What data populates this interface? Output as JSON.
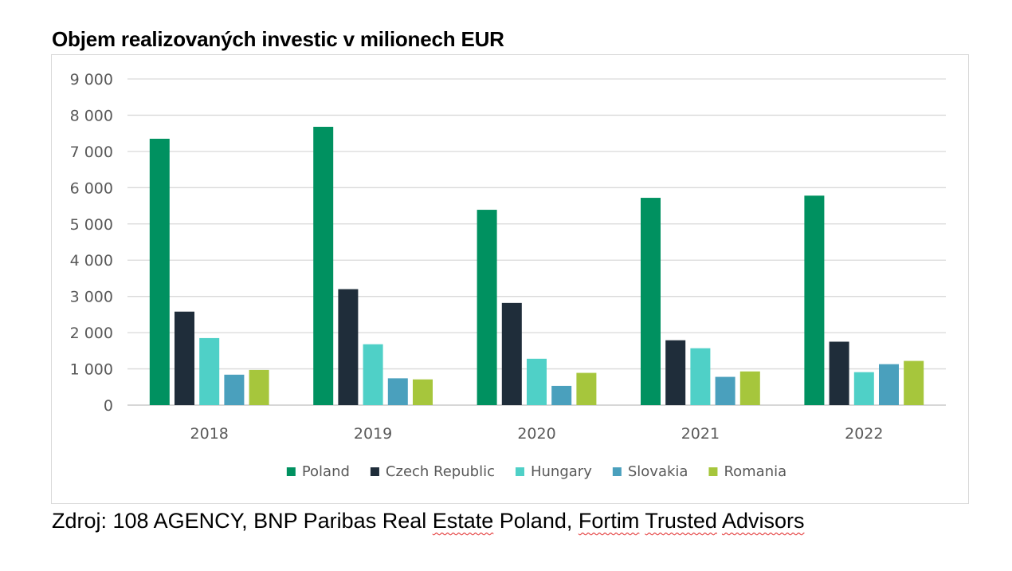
{
  "title": "Objem realizovaných investic v milionech EUR",
  "source": {
    "prefix": "Zdroj: 108 AGENCY, BNP Paribas Real ",
    "w1": "Estate",
    "mid1": " Poland, ",
    "w2": "Fortim",
    "mid2": " ",
    "w3": "Trusted",
    "mid3": " ",
    "w4": "Advisors"
  },
  "chart_data": {
    "type": "bar",
    "categories": [
      "2018",
      "2019",
      "2020",
      "2021",
      "2022"
    ],
    "y_ticks": [
      "0",
      "1 000",
      "2 000",
      "3 000",
      "4 000",
      "5 000",
      "6 000",
      "7 000",
      "8 000",
      "9 000"
    ],
    "ylim": [
      0,
      9000
    ],
    "grid": true,
    "legend_position": "bottom",
    "series": [
      {
        "name": "Poland",
        "color": "#009160",
        "values": [
          7350,
          7680,
          5390,
          5720,
          5780
        ]
      },
      {
        "name": "Czech Republic",
        "color": "#1f2d3a",
        "values": [
          2580,
          3200,
          2820,
          1790,
          1750
        ]
      },
      {
        "name": "Hungary",
        "color": "#4fd0c7",
        "values": [
          1850,
          1680,
          1280,
          1570,
          910
        ]
      },
      {
        "name": "Slovakia",
        "color": "#4aa0bd",
        "values": [
          840,
          740,
          530,
          780,
          1130
        ]
      },
      {
        "name": "Romania",
        "color": "#a6c63c",
        "values": [
          970,
          710,
          890,
          930,
          1220
        ]
      }
    ]
  }
}
